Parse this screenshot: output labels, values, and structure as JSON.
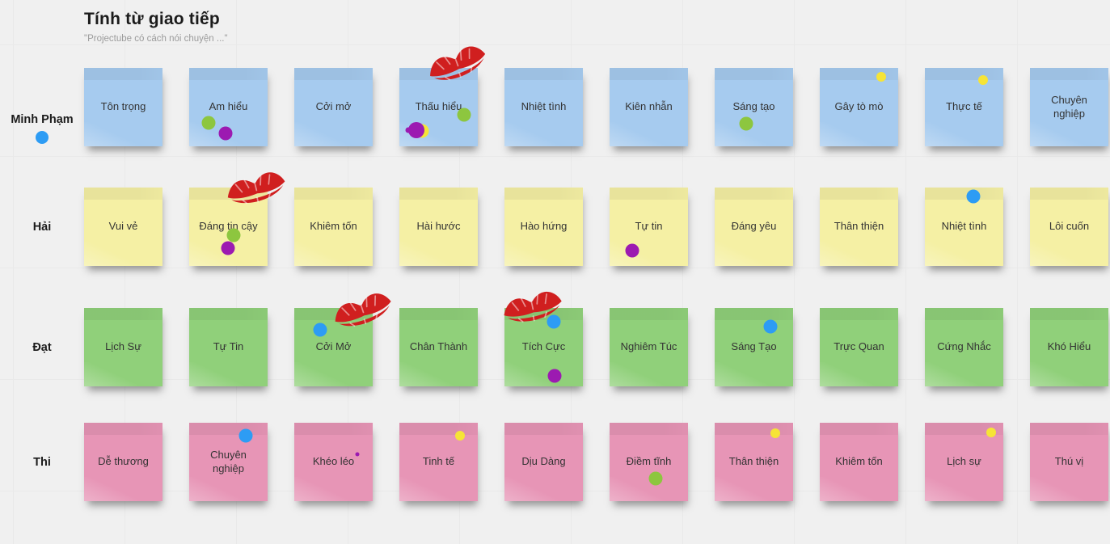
{
  "board": {
    "title": "Tính từ giao tiếp",
    "subtitle": "\"Projectube có cách nói chuyện ...\"",
    "colors": {
      "background": "#f0f0f0",
      "note_blue": "#a6cbef",
      "note_yellow": "#f5f0a4",
      "note_green": "#90d07a",
      "note_pink": "#e795b6",
      "dot_green": "#8dc63f",
      "dot_purple": "#9c1ab1",
      "dot_blue": "#2d9cf4",
      "dot_yellow": "#f6e437",
      "kiss_red": "#d01f1f",
      "title_color": "#1b1b1b",
      "subtitle_color": "#9b9b9b"
    },
    "rows": [
      {
        "author": "Minh Phạm",
        "author_dot_color": "dot_blue",
        "color": "note_blue",
        "notes": [
          {
            "text": "Tôn trọng"
          },
          {
            "text": "Am hiểu",
            "dots": [
              {
                "c": "dot_green",
                "x": 25,
                "y": 70
              },
              {
                "c": "dot_purple",
                "x": 46,
                "y": 84
              }
            ]
          },
          {
            "text": "Cởi mở"
          },
          {
            "text": "Thấu hiểu",
            "kiss": {
              "x": 33,
              "y": -30,
              "r": -20
            },
            "dots": [
              {
                "c": "dot_green",
                "x": 82,
                "y": 60
              },
              {
                "c": "dot_yellow",
                "x": 29,
                "y": 80
              },
              {
                "c": "dot_purple",
                "x": 22,
                "y": 79,
                "s": 20
              },
              {
                "c": "dot_purple",
                "x": 11,
                "y": 79,
                "s": 7
              }
            ]
          },
          {
            "text": "Nhiệt tình"
          },
          {
            "text": "Kiên nhẫn"
          },
          {
            "text": "Sáng tạo",
            "dots": [
              {
                "c": "dot_green",
                "x": 40,
                "y": 71
              }
            ]
          },
          {
            "text": "Gây tò mò",
            "dots": [
              {
                "c": "dot_yellow",
                "x": 78,
                "y": 11,
                "s": 12
              }
            ]
          },
          {
            "text": "Thực tế",
            "dots": [
              {
                "c": "dot_yellow",
                "x": 74,
                "y": 15,
                "s": 12
              }
            ]
          },
          {
            "text": "Chuyên nghiệp"
          }
        ]
      },
      {
        "author": "Hải",
        "color": "note_yellow",
        "notes": [
          {
            "text": "Vui vẻ"
          },
          {
            "text": "Đáng tin cậy",
            "kiss": {
              "x": 44,
              "y": -24,
              "r": -14
            },
            "dots": [
              {
                "c": "dot_green",
                "x": 57,
                "y": 61
              },
              {
                "c": "dot_purple",
                "x": 49,
                "y": 77
              }
            ]
          },
          {
            "text": "Khiêm tốn"
          },
          {
            "text": "Hài hước"
          },
          {
            "text": "Hào hứng"
          },
          {
            "text": "Tự tin",
            "dots": [
              {
                "c": "dot_purple",
                "x": 29,
                "y": 80
              }
            ]
          },
          {
            "text": "Đáng yêu"
          },
          {
            "text": "Thân thiện"
          },
          {
            "text": "Nhiệt tình",
            "dots": [
              {
                "c": "dot_blue",
                "x": 62,
                "y": 11
              }
            ]
          },
          {
            "text": "Lôi cuốn"
          }
        ]
      },
      {
        "author": "Đạt",
        "color": "note_green",
        "notes": [
          {
            "text": "Lịch Sự"
          },
          {
            "text": "Tự Tin"
          },
          {
            "text": "Cởi Mở",
            "kiss": {
              "x": 46,
              "y": -22,
              "r": -18
            },
            "dots": [
              {
                "c": "dot_blue",
                "x": 33,
                "y": 28
              }
            ]
          },
          {
            "text": "Chân Thành"
          },
          {
            "text": "Tích Cực",
            "kiss": {
              "x": -4,
              "y": -26,
              "r": -12
            },
            "dots": [
              {
                "c": "dot_blue",
                "x": 63,
                "y": 18
              },
              {
                "c": "dot_purple",
                "x": 64,
                "y": 87
              }
            ]
          },
          {
            "text": "Nghiêm Túc"
          },
          {
            "text": "Sáng Tạo",
            "dots": [
              {
                "c": "dot_blue",
                "x": 71,
                "y": 24
              }
            ]
          },
          {
            "text": "Trực Quan"
          },
          {
            "text": "Cứng Nhắc"
          },
          {
            "text": "Khó Hiểu"
          }
        ]
      },
      {
        "author": "Thi",
        "color": "note_pink",
        "notes": [
          {
            "text": "Dễ thương"
          },
          {
            "text": "Chuyên nghiệp",
            "dots": [
              {
                "c": "dot_blue",
                "x": 72,
                "y": 16
              }
            ]
          },
          {
            "text": "Khéo léo",
            "dots": [
              {
                "c": "dot_purple",
                "x": 80,
                "y": 40,
                "s": 5
              }
            ]
          },
          {
            "text": "Tinh tế",
            "dots": [
              {
                "c": "dot_yellow",
                "x": 77,
                "y": 16,
                "s": 12
              }
            ]
          },
          {
            "text": "Dịu Dàng"
          },
          {
            "text": "Điềm tĩnh",
            "dots": [
              {
                "c": "dot_green",
                "x": 59,
                "y": 71
              }
            ]
          },
          {
            "text": "Thân thiện",
            "dots": [
              {
                "c": "dot_yellow",
                "x": 77,
                "y": 13,
                "s": 12
              }
            ]
          },
          {
            "text": "Khiêm tốn"
          },
          {
            "text": "Lịch sự",
            "dots": [
              {
                "c": "dot_yellow",
                "x": 85,
                "y": 12,
                "s": 12
              }
            ]
          },
          {
            "text": "Thú vị"
          }
        ]
      }
    ]
  }
}
